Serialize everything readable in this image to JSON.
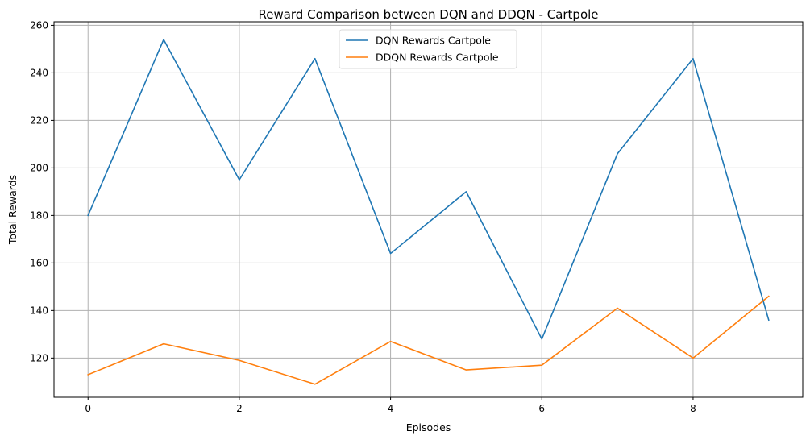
{
  "chart_data": {
    "type": "line",
    "title": "Reward Comparison between DQN and DDQN - Cartpole",
    "xlabel": "Episodes",
    "ylabel": "Total Rewards",
    "x": [
      0,
      1,
      2,
      3,
      4,
      5,
      6,
      7,
      8,
      9
    ],
    "xlim": [
      -0.45,
      9.45
    ],
    "ylim": [
      103.5,
      261.5
    ],
    "xticks": [
      0,
      2,
      4,
      6,
      8
    ],
    "yticks": [
      120,
      140,
      160,
      180,
      200,
      220,
      240,
      260
    ],
    "grid": true,
    "legend_position": "upper center",
    "series": [
      {
        "name": "DQN Rewards Cartpole",
        "color": "#1f77b4",
        "values": [
          180,
          254,
          195,
          246,
          164,
          190,
          128,
          206,
          246,
          136
        ]
      },
      {
        "name": "DDQN Rewards Cartpole",
        "color": "#ff7f0e",
        "values": [
          113,
          126,
          119,
          109,
          127,
          115,
          117,
          141,
          120,
          146
        ]
      }
    ]
  }
}
